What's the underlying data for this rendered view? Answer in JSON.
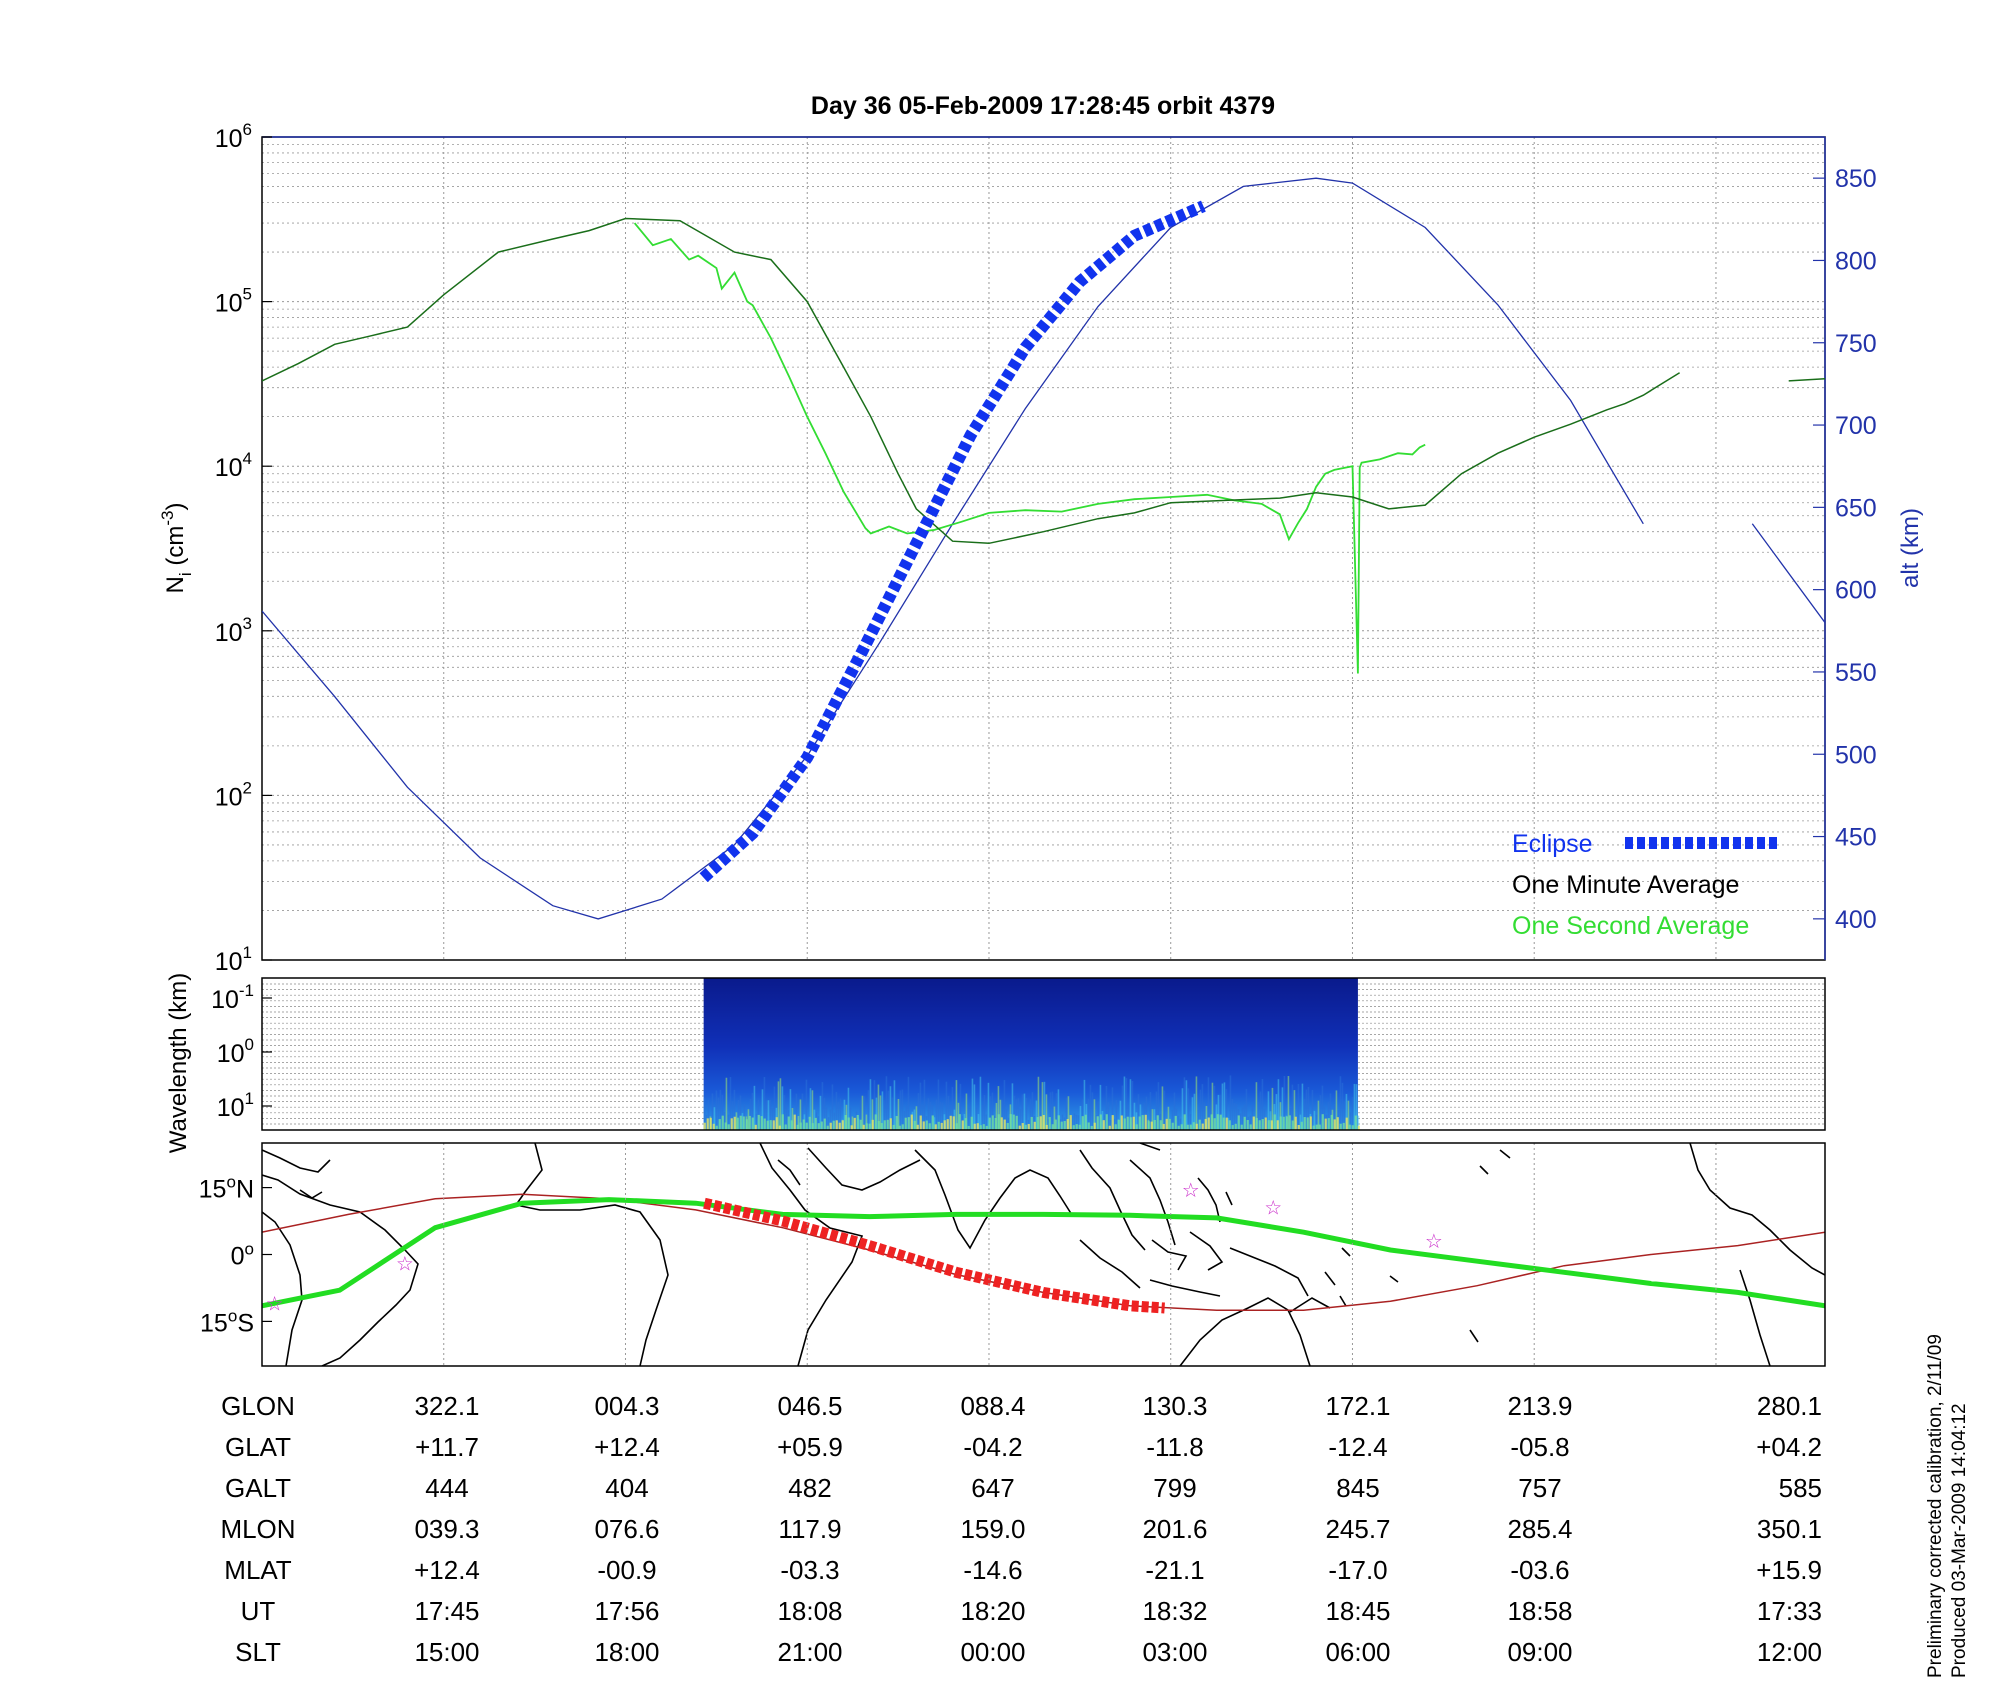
{
  "title": "Day 36  05-Feb-2009 17:28:45   orbit 4379",
  "colors": {
    "ni_one_minute": "#1a6e1a",
    "ni_one_second": "#33dd33",
    "altitude": "#2233aa",
    "eclipse": "#1133ee",
    "grid": "#999999",
    "axis_right": "#2233aa",
    "ground_track": "#22dd22",
    "magnetic_equator": "#aa2222",
    "eclipse_track": "#ee2222",
    "stars": "#cc33cc"
  },
  "chart_data": [
    {
      "type": "line",
      "panel": "density",
      "title": "Day 36  05-Feb-2009 17:28:45   orbit 4379",
      "ylabel": "N",
      "ylabel_sub": "i",
      "ylabel_unit": " (cm",
      "ylabel_unit_sup": "-3",
      "ylabel_unit_end": ")",
      "yscale": "log",
      "ylim": [
        10,
        1000000
      ],
      "y_ticks": [
        {
          "base": "10",
          "exp": "1",
          "value": 10
        },
        {
          "base": "10",
          "exp": "2",
          "value": 100
        },
        {
          "base": "10",
          "exp": "3",
          "value": 1000
        },
        {
          "base": "10",
          "exp": "4",
          "value": 10000
        },
        {
          "base": "10",
          "exp": "5",
          "value": 100000
        },
        {
          "base": "10",
          "exp": "6",
          "value": 1000000
        }
      ],
      "y2label": "alt (km)",
      "y2lim": [
        375,
        875
      ],
      "y2_ticks": [
        "400",
        "450",
        "500",
        "550",
        "600",
        "650",
        "700",
        "750",
        "800",
        "850"
      ],
      "x_range_min": [
        0,
        86
      ],
      "grid": true,
      "legend": [
        "Eclipse",
        "One Minute Average",
        "One Second Average"
      ],
      "legend_position": "bottom-right",
      "series": [
        {
          "name": "One Minute Average",
          "x": [
            0,
            2,
            4,
            6,
            8,
            10,
            13,
            16,
            18,
            20,
            23,
            26,
            28,
            30,
            32,
            33.5,
            35,
            36,
            38,
            40,
            43,
            46,
            48,
            50,
            53,
            56,
            58,
            60,
            62,
            64,
            66,
            68,
            70,
            72,
            74,
            75,
            76,
            78,
            80,
            82,
            84,
            86
          ],
          "y": [
            33000,
            42000,
            55000,
            62000,
            70000,
            110000,
            200000,
            240000,
            270000,
            320000,
            310000,
            200000,
            180000,
            100000,
            40000,
            20000,
            9000,
            5500,
            3500,
            3400,
            4000,
            4800,
            5200,
            6000,
            6200,
            6400,
            6900,
            6500,
            5500,
            5800,
            9000,
            12000,
            15000,
            18000,
            22000,
            24000,
            27000,
            37000,
            null,
            null,
            33000,
            34000
          ]
        },
        {
          "name": "One Second Average",
          "x": [
            20.5,
            21.5,
            22.5,
            23.5,
            24,
            25,
            25.3,
            26,
            26.7,
            27,
            28,
            29,
            30,
            31,
            32,
            33.2,
            33.5,
            34.5,
            35.5,
            37,
            38.5,
            40,
            42,
            44,
            46,
            48,
            50,
            52,
            53.5,
            55,
            56,
            56.5,
            57,
            57.5,
            58,
            58.5,
            59,
            60,
            60.3,
            60.4,
            60.5,
            61.5,
            62.5,
            63.3,
            63.7,
            64
          ],
          "y": [
            300000,
            220000,
            240000,
            180000,
            190000,
            160000,
            120000,
            150000,
            100000,
            95000,
            60000,
            35000,
            20000,
            12000,
            7000,
            4200,
            3900,
            4300,
            3900,
            4100,
            4600,
            5200,
            5400,
            5300,
            5900,
            6300,
            6500,
            6700,
            6200,
            5900,
            5100,
            3600,
            4500,
            5500,
            7500,
            9000,
            9500,
            10000,
            550,
            9800,
            10500,
            11000,
            12000,
            11800,
            13000,
            13500
          ]
        },
        {
          "name": "Altitude",
          "axis": "right",
          "x": [
            0,
            4,
            8,
            12,
            16,
            18.5,
            22,
            26,
            30,
            34,
            38,
            42,
            46,
            50,
            54,
            58,
            60,
            64,
            68,
            72,
            76,
            null,
            82,
            86
          ],
          "y": [
            587,
            535,
            480,
            437,
            408,
            400,
            412,
            445,
            499,
            568,
            640,
            710,
            772,
            820,
            845,
            850,
            847,
            820,
            773,
            715,
            640,
            null,
            640,
            580
          ]
        },
        {
          "name": "Eclipse",
          "axis": "right",
          "x": [
            24.3,
            27,
            30,
            33,
            36,
            39,
            42,
            45,
            48,
            51.8
          ],
          "y": [
            425,
            452,
            498,
            562,
            628,
            694,
            747,
            787,
            815,
            833
          ]
        }
      ]
    },
    {
      "type": "heatmap",
      "panel": "spectrogram",
      "ylabel": "Wavelength (km)",
      "yscale": "log",
      "y_ticks": [
        {
          "base": "10",
          "exp": "-1"
        },
        {
          "base": "10",
          "exp": "0"
        },
        {
          "base": "10",
          "exp": "1"
        }
      ],
      "x_range_min": [
        0,
        86
      ],
      "data_x_range": [
        24.3,
        60.3
      ]
    },
    {
      "type": "line",
      "panel": "map",
      "y_ticks": [
        {
          "deg": "15",
          "suffix": "N",
          "value": 15
        },
        {
          "deg": "0",
          "suffix": "",
          "value": 0
        },
        {
          "deg": "15",
          "suffix": "S",
          "value": -15
        }
      ],
      "xlim": [
        280.1,
        640.1
      ],
      "ylim": [
        -25,
        25
      ],
      "series": [
        {
          "name": "ground track",
          "x": [
            280.1,
            298,
            320,
            340,
            360,
            380,
            400,
            420,
            440,
            460,
            480,
            500,
            520,
            540,
            560,
            580,
            600,
            620,
            640.1
          ],
          "y": [
            -11.5,
            -8,
            6,
            11.5,
            12.3,
            11.5,
            9,
            8.5,
            9,
            9,
            8.8,
            8.2,
            5,
            1,
            -1.5,
            -4,
            -6.5,
            -8.5,
            -11.5
          ]
        },
        {
          "name": "eclipse track",
          "x": [
            382,
            400,
            420,
            440,
            460,
            480,
            488
          ],
          "y": [
            11.5,
            7.5,
            2,
            -4,
            -8.5,
            -11.5,
            -12
          ]
        },
        {
          "name": "magnetic equator",
          "x": [
            280.1,
            300,
            320,
            340,
            360,
            380,
            400,
            420,
            440,
            460,
            480,
            500,
            520,
            540,
            560,
            580,
            600,
            620,
            640.1
          ],
          "y": [
            5,
            9,
            12.5,
            13.5,
            12.5,
            10,
            6,
            1,
            -4.5,
            -8.5,
            -11.5,
            -12.5,
            -12.5,
            -10.5,
            -7,
            -2.5,
            0,
            2,
            5
          ]
        }
      ],
      "stars": [
        {
          "x": 283,
          "y": -11
        },
        {
          "x": 313,
          "y": -2
        },
        {
          "x": 494,
          "y": 14.5
        },
        {
          "x": 513,
          "y": 10.5
        },
        {
          "x": 550,
          "y": 3
        }
      ]
    }
  ],
  "table": {
    "rows": [
      {
        "label": "GLON",
        "values": [
          "322.1",
          "004.3",
          "046.5",
          "088.4",
          "130.3",
          "172.1",
          "213.9",
          "280.1"
        ]
      },
      {
        "label": "GLAT",
        "values": [
          "+11.7",
          "+12.4",
          "+05.9",
          "-04.2",
          "-11.8",
          "-12.4",
          "-05.8",
          "+04.2"
        ]
      },
      {
        "label": "GALT",
        "values": [
          "444",
          "404",
          "482",
          "647",
          "799",
          "845",
          "757",
          "585"
        ]
      },
      {
        "label": "MLON",
        "values": [
          "039.3",
          "076.6",
          "117.9",
          "159.0",
          "201.6",
          "245.7",
          "285.4",
          "350.1"
        ]
      },
      {
        "label": "MLAT",
        "values": [
          "+12.4",
          "-00.9",
          "-03.3",
          "-14.6",
          "-21.1",
          "-17.0",
          "-03.6",
          "+15.9"
        ]
      },
      {
        "label": "UT",
        "values": [
          "17:45",
          "17:56",
          "18:08",
          "18:20",
          "18:32",
          "18:45",
          "18:58",
          "17:33"
        ]
      },
      {
        "label": "SLT",
        "values": [
          "15:00",
          "18:00",
          "21:00",
          "00:00",
          "03:00",
          "06:00",
          "09:00",
          "12:00"
        ]
      }
    ]
  },
  "side_note": {
    "line1": "Preliminary corrected calibration, 2/11/09",
    "line2": "Produced 03-Mar-2009 14:04:12"
  }
}
